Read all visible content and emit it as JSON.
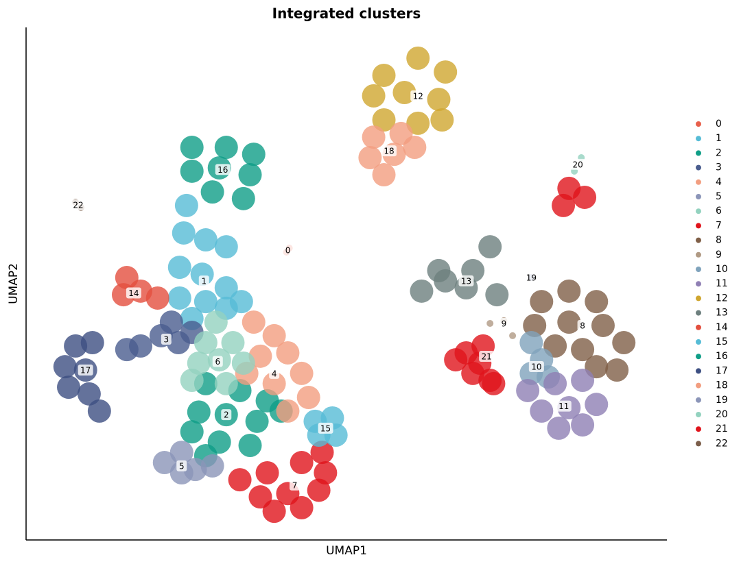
{
  "chart_data": {
    "type": "scatter",
    "title": "Integrated clusters",
    "x_label": "UMAP1",
    "y_label": "UMAP2",
    "xlim": [
      -10,
      15
    ],
    "ylim": [
      -10,
      10
    ],
    "grid": false,
    "legend": "right",
    "series": [
      {
        "name": "0",
        "color": "#e8604c",
        "x": [
          0.16,
          0.27
        ],
        "y": [
          1.23,
          1.39
        ]
      },
      {
        "name": "1",
        "color": "#56bcd6",
        "x": [
          -3.74,
          -3.85,
          -2.99,
          -2.19,
          -4.01,
          -3.13,
          -2.19,
          -4.01,
          -2.99,
          -3.53,
          -2.19,
          -1.6
        ],
        "y": [
          3.05,
          1.98,
          1.71,
          1.44,
          0.64,
          0.37,
          -0.16,
          -0.56,
          -0.7,
          -1.36,
          -0.96,
          -0.7
        ]
      },
      {
        "name": "2",
        "color": "#0f9e87",
        "x": [
          -2.99,
          -1.66,
          -0.59,
          -3.26,
          -2.19,
          -0.99,
          -3.53,
          -2.46,
          -1.26,
          -2.99,
          -0.05
        ],
        "y": [
          -3.9,
          -4.17,
          -4.57,
          -5.01,
          -5.11,
          -5.37,
          -5.78,
          -6.18,
          -6.31,
          -6.71,
          -4.97
        ]
      },
      {
        "name": "3",
        "color": "#4a5d8e",
        "x": [
          -4.33,
          -4.73,
          -5.53,
          -4.06,
          -6.07,
          -3.53
        ],
        "y": [
          -1.5,
          -2.03,
          -2.43,
          -2.3,
          -2.57,
          -1.9
        ]
      },
      {
        "name": "4",
        "color": "#f29e80",
        "x": [
          -1.12,
          -0.32,
          -0.86,
          0.21,
          0.75,
          -0.32,
          1.02,
          0.21,
          -1.39
        ],
        "y": [
          -1.5,
          -2.03,
          -2.83,
          -2.7,
          -3.5,
          -3.9,
          -4.44,
          -4.97,
          -3.5
        ]
      },
      {
        "name": "5",
        "color": "#8b95b8",
        "x": [
          -4.6,
          -3.93,
          -3.4,
          -2.73,
          -3.93
        ],
        "y": [
          -6.98,
          -6.58,
          -7.25,
          -7.11,
          -7.38
        ]
      },
      {
        "name": "6",
        "color": "#93d2bf",
        "x": [
          -2.99,
          -1.93,
          -3.26,
          -2.46,
          -1.52,
          -3.53,
          -2.19,
          -2.59
        ],
        "y": [
          -2.3,
          -2.3,
          -3.1,
          -2.97,
          -3.1,
          -3.77,
          -3.9,
          -1.5
        ]
      },
      {
        "name": "7",
        "color": "#e0141c",
        "x": [
          -1.66,
          -0.59,
          0.75,
          1.68,
          -0.86,
          0.21,
          1.42,
          -0.32,
          0.75,
          1.55
        ],
        "y": [
          -7.65,
          -7.38,
          -6.98,
          -7.38,
          -8.32,
          -8.19,
          -8.06,
          -8.88,
          -8.74,
          -6.58
        ]
      },
      {
        "name": "8",
        "color": "#7f5f47",
        "x": [
          10.11,
          11.18,
          12.25,
          9.84,
          11.18,
          12.51,
          13.32,
          11.71,
          10.64,
          13.05,
          12.25
        ],
        "y": [
          -0.7,
          -0.29,
          -0.7,
          -1.63,
          -1.5,
          -1.63,
          -2.3,
          -2.57,
          -2.43,
          -3.37,
          -3.24
        ]
      },
      {
        "name": "9",
        "color": "#b09a84",
        "x": [
          8.1,
          8.64,
          8.98
        ],
        "y": [
          -1.55,
          -1.44,
          -2.03
        ]
      },
      {
        "name": "10",
        "color": "#7fa3bc",
        "x": [
          9.71,
          10.11,
          9.71,
          10.37
        ],
        "y": [
          -2.3,
          -2.97,
          -3.5,
          -3.64
        ]
      },
      {
        "name": "11",
        "color": "#8f7fb4",
        "x": [
          9.57,
          10.64,
          11.71,
          10.11,
          11.18,
          12.25,
          10.78,
          11.71
        ],
        "y": [
          -4.17,
          -3.9,
          -3.77,
          -4.97,
          -4.84,
          -4.71,
          -5.64,
          -5.51
        ]
      },
      {
        "name": "12",
        "color": "#cfa62f",
        "x": [
          3.96,
          5.29,
          6.36,
          3.56,
          4.76,
          6.1,
          3.96,
          5.29,
          6.23
        ],
        "y": [
          8.13,
          8.8,
          8.26,
          7.33,
          7.46,
          7.19,
          6.39,
          6.26,
          6.39
        ]
      },
      {
        "name": "13",
        "color": "#6d7f7e",
        "x": [
          5.43,
          6.36,
          7.43,
          8.1,
          7.17,
          6.1,
          8.37
        ],
        "y": [
          -0.29,
          0.11,
          0.51,
          1.44,
          -0.16,
          0.51,
          -0.43
        ]
      },
      {
        "name": "14",
        "color": "#e34f3e",
        "x": [
          -6.07,
          -5.53,
          -6.2,
          -4.87
        ],
        "y": [
          0.24,
          -0.29,
          -0.43,
          -0.56
        ]
      },
      {
        "name": "15",
        "color": "#56bcd6",
        "x": [
          1.28,
          1.95,
          2.09,
          1.42
        ],
        "y": [
          -5.37,
          -5.24,
          -5.91,
          -5.91
        ]
      },
      {
        "name": "16",
        "color": "#0f9e87",
        "x": [
          -3.53,
          -2.19,
          -1.12,
          -3.53,
          -2.46,
          -1.26,
          -2.73,
          -1.52
        ],
        "y": [
          5.32,
          5.32,
          5.05,
          4.39,
          4.52,
          4.25,
          3.58,
          3.32
        ]
      },
      {
        "name": "17",
        "color": "#3d4f82",
        "x": [
          -8.07,
          -7.41,
          -8.48,
          -7.68,
          -8.34,
          -7.54,
          -7.14
        ],
        "y": [
          -2.43,
          -2.3,
          -3.24,
          -3.37,
          -4.04,
          -4.3,
          -4.97
        ]
      },
      {
        "name": "18",
        "color": "#f29e80",
        "x": [
          3.56,
          4.63,
          3.42,
          4.36,
          5.16,
          3.96
        ],
        "y": [
          5.72,
          5.86,
          4.92,
          5.05,
          5.32,
          4.25
        ]
      },
      {
        "name": "19",
        "color": "#8b95b8",
        "x": [
          9.71
        ],
        "y": [
          0.24
        ]
      },
      {
        "name": "20",
        "color": "#93d2bf",
        "x": [
          11.66,
          11.39
        ],
        "y": [
          4.92,
          4.39
        ]
      },
      {
        "name": "21",
        "color": "#e0141c",
        "x": [
          6.76,
          7.43,
          8.1,
          7.83,
          7.17,
          7.7,
          8.24,
          11.18,
          10.96,
          11.79
        ],
        "y": [
          -2.97,
          -3.5,
          -3.77,
          -2.43,
          -2.7,
          -3.1,
          -3.9,
          3.72,
          3.05,
          3.37
        ]
      },
      {
        "name": "22",
        "color": "#7b5e4a",
        "x": [
          -8.07,
          -7.86
        ],
        "y": [
          3.18,
          2.97
        ]
      }
    ]
  }
}
